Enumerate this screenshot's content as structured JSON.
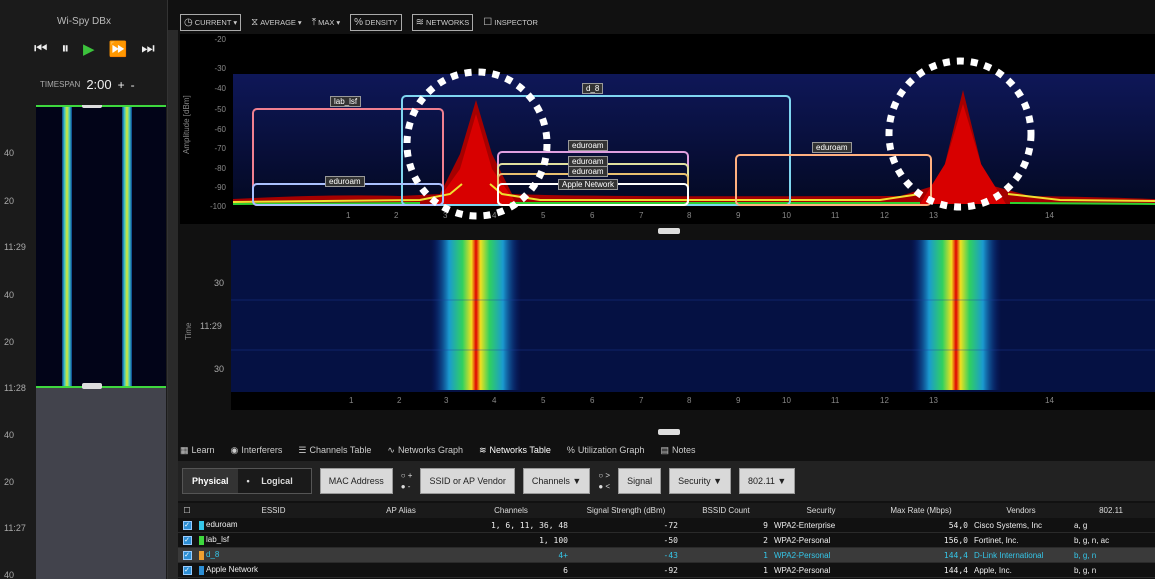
{
  "app": {
    "title": "Wi-Spy DBx",
    "timespan_label": "TIMESPAN",
    "timespan_value": "2:00",
    "plus": "+",
    "minus": "-"
  },
  "transport": {
    "skip_back": "⏮",
    "pause": "⏸",
    "play": "▶",
    "fast_forward": "⏩",
    "skip_forward": "⏭"
  },
  "left_times": [
    "40",
    "20",
    "11:29",
    "40",
    "20",
    "11:28",
    "40",
    "20",
    "11:27",
    "40"
  ],
  "toolbar": {
    "current": "CURRENT",
    "average": "AVERAGE",
    "max": "MAX",
    "density": "DENSITY",
    "networks": "NETWORKS",
    "inspector": "INSPECTOR"
  },
  "spectrum": {
    "ylabel": "Amplitude [dBm]",
    "yticks": [
      "-20",
      "-30",
      "-40",
      "-50",
      "-60",
      "-70",
      "-80",
      "-90",
      "-100"
    ],
    "xticks": [
      "1",
      "2",
      "3",
      "4",
      "5",
      "6",
      "7",
      "8",
      "9",
      "10",
      "11",
      "12",
      "13",
      "14"
    ],
    "networks": [
      "lab_lsf",
      "d_8",
      "eduroam",
      "eduroam",
      "eduroam",
      "eduroam",
      "eduroam",
      "Apple Network"
    ],
    "colors": {
      "lab_lsf": "#f08090",
      "d_8": "#7fd6f0",
      "eduroam": "#e0a0e0",
      "eduroam2": "#ffb080",
      "apple": "#ffffff"
    }
  },
  "waterfall": {
    "ylabel": "Time",
    "ticks": [
      "30",
      "11:29",
      "30"
    ],
    "xticks": [
      "1",
      "2",
      "3",
      "4",
      "5",
      "6",
      "7",
      "8",
      "9",
      "10",
      "11",
      "12",
      "13",
      "14"
    ]
  },
  "tabs": [
    {
      "label": "Learn",
      "icon": "learn-icon"
    },
    {
      "label": "Interferers",
      "icon": "interferers-icon"
    },
    {
      "label": "Channels Table",
      "icon": "channels-table-icon"
    },
    {
      "label": "Networks Graph",
      "icon": "networks-graph-icon"
    },
    {
      "label": "Networks Table",
      "icon": "networks-table-icon"
    },
    {
      "label": "Utilization Graph",
      "icon": "utilization-graph-icon"
    },
    {
      "label": "Notes",
      "icon": "notes-icon"
    }
  ],
  "filters": {
    "physical": "Physical",
    "logical": "Logical",
    "mac": "MAC Address",
    "radio1_a": "+",
    "radio1_b": "-",
    "ssid": "SSID or AP Vendor",
    "channels": "Channels",
    "radio2_a": ">",
    "radio2_b": "<",
    "signal": "Signal",
    "security": "Security",
    "proto": "802.11"
  },
  "table": {
    "headers": [
      "ESSID",
      "AP Alias",
      "Channels",
      "Signal Strength (dBm)",
      "BSSID Count",
      "Security",
      "Max Rate (Mbps)",
      "Vendors",
      "802.11"
    ],
    "rows": [
      {
        "swatch": "#35c6e8",
        "essid": "eduroam",
        "alias": "",
        "channels": "1, 6, 11, 36, 48",
        "signal": "-72",
        "count": "9",
        "security": "WPA2-Enterprise",
        "rate": "54,0",
        "vendor": "Cisco Systems, Inc",
        "proto": "a, g"
      },
      {
        "swatch": "#3ed83e",
        "essid": "lab_lsf",
        "alias": "",
        "channels": "1, 100",
        "signal": "-50",
        "count": "2",
        "security": "WPA2-Personal",
        "rate": "156,0",
        "vendor": "Fortinet, Inc.",
        "proto": "b, g, n, ac"
      },
      {
        "swatch": "#f0a030",
        "essid": "d_8",
        "alias": "",
        "channels": "4+",
        "signal": "-43",
        "count": "1",
        "security": "WPA2-Personal",
        "rate": "144,4",
        "vendor": "D-Link International",
        "proto": "b, g, n"
      },
      {
        "swatch": "#2d8fd5",
        "essid": "Apple Network",
        "alias": "",
        "channels": "6",
        "signal": "-92",
        "count": "1",
        "security": "WPA2-Personal",
        "rate": "144,4",
        "vendor": "Apple, Inc.",
        "proto": "b, g, n"
      }
    ]
  }
}
